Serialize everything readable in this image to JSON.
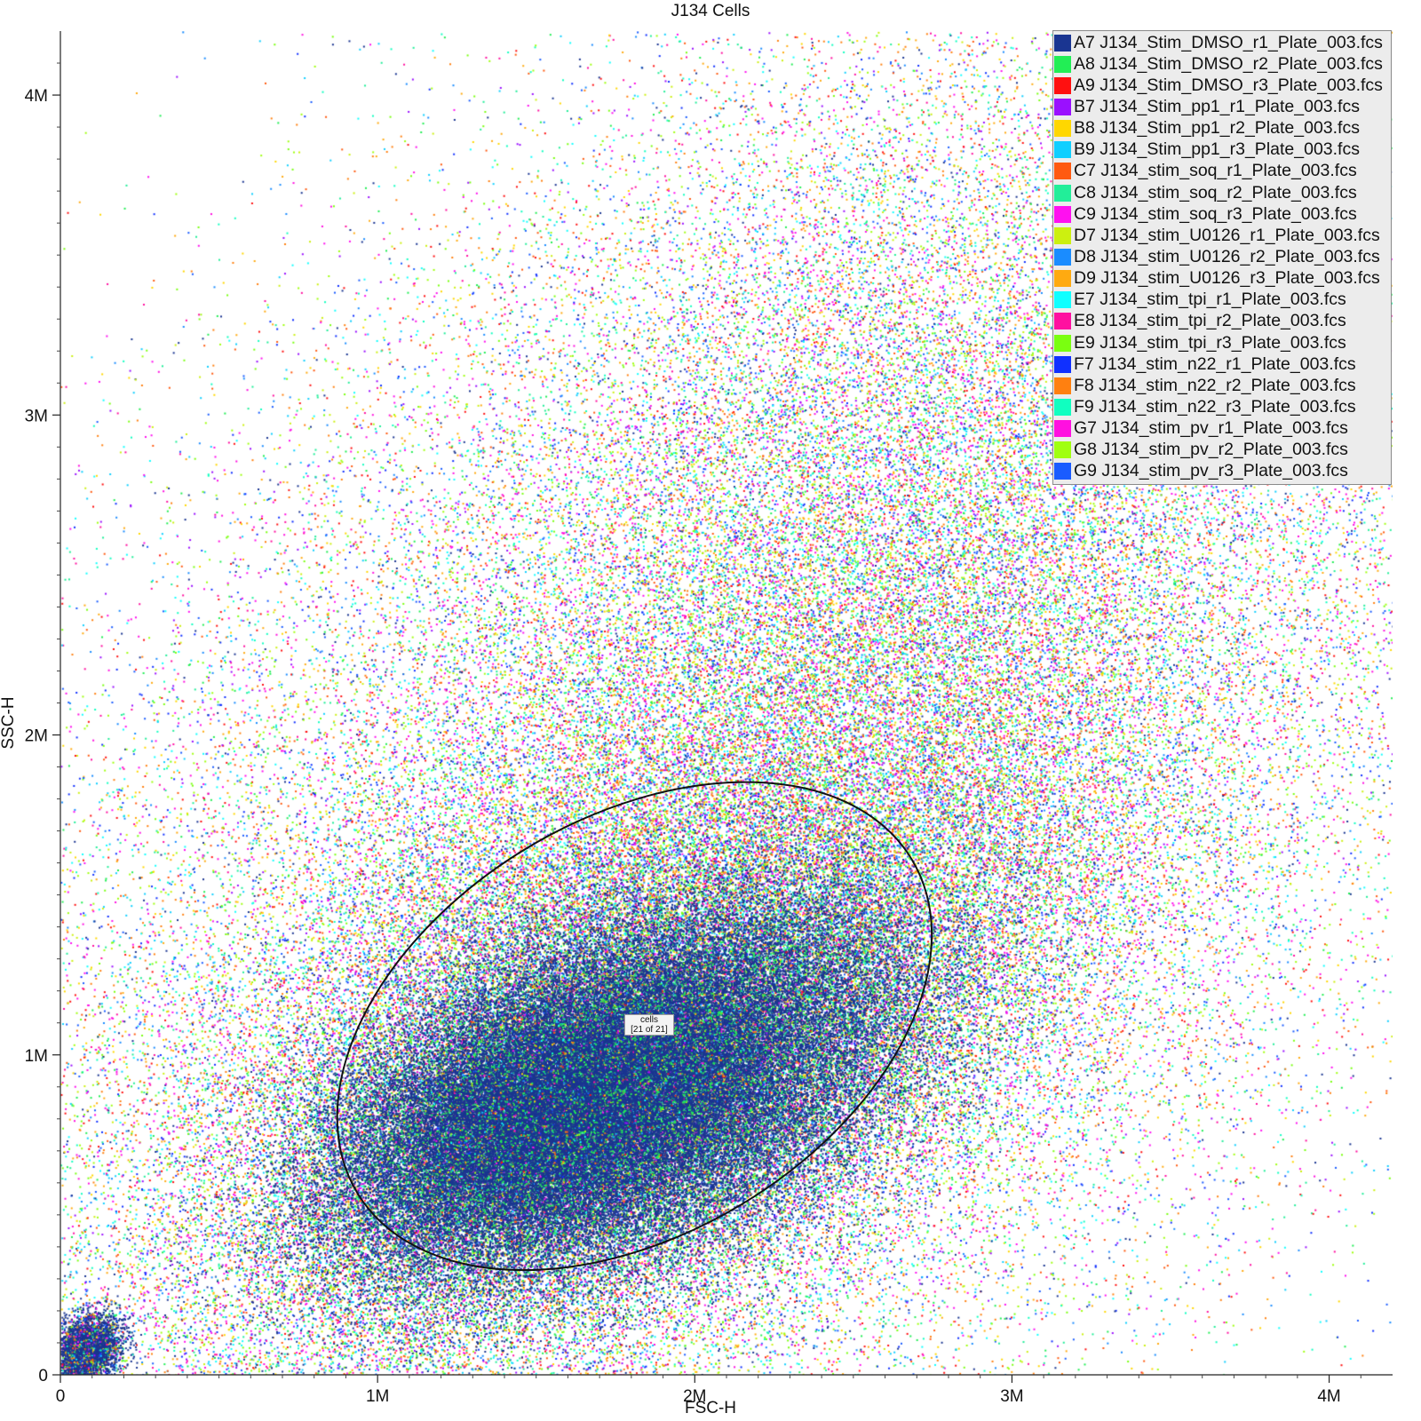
{
  "chart_data": {
    "type": "scatter",
    "title": "J134 Cells",
    "xlabel": "FSC-H",
    "ylabel": "SSC-H",
    "xlim": [
      0,
      4200000
    ],
    "ylim": [
      0,
      4200000
    ],
    "x_ticks": [
      {
        "value": 0,
        "label": "0"
      },
      {
        "value": 1000000,
        "label": "1M"
      },
      {
        "value": 2000000,
        "label": "2M"
      },
      {
        "value": 3000000,
        "label": "3M"
      },
      {
        "value": 4000000,
        "label": "4M"
      }
    ],
    "y_ticks": [
      {
        "value": 0,
        "label": "0"
      },
      {
        "value": 1000000,
        "label": "1M"
      },
      {
        "value": 2000000,
        "label": "2M"
      },
      {
        "value": 3000000,
        "label": "3M"
      },
      {
        "value": 4000000,
        "label": "4M"
      }
    ],
    "grid": false,
    "legend_position": "top-right",
    "series": [
      {
        "name": "A7 J134_Stim_DMSO_r1_Plate_003.fcs",
        "color": "#1a3591"
      },
      {
        "name": "A8 J134_Stim_DMSO_r2_Plate_003.fcs",
        "color": "#22ee55"
      },
      {
        "name": "A9 J134_Stim_DMSO_r3_Plate_003.fcs",
        "color": "#ff1010"
      },
      {
        "name": "B7 J134_Stim_pp1_r1_Plate_003.fcs",
        "color": "#9a10ff"
      },
      {
        "name": "B8 J134_Stim_pp1_r2_Plate_003.fcs",
        "color": "#ffd700"
      },
      {
        "name": "B9 J134_Stim_pp1_r3_Plate_003.fcs",
        "color": "#10cfff"
      },
      {
        "name": "C7 J134_stim_soq_r1_Plate_003.fcs",
        "color": "#ff5a10"
      },
      {
        "name": "C8 J134_stim_soq_r2_Plate_003.fcs",
        "color": "#22ee99"
      },
      {
        "name": "C9 J134_stim_soq_r3_Plate_003.fcs",
        "color": "#ff10f0"
      },
      {
        "name": "D7 J134_stim_U0126_r1_Plate_003.fcs",
        "color": "#ccf010"
      },
      {
        "name": "D8 J134_stim_U0126_r2_Plate_003.fcs",
        "color": "#1a8cff"
      },
      {
        "name": "D9 J134_stim_U0126_r3_Plate_003.fcs",
        "color": "#ffaa10"
      },
      {
        "name": "E7 J134_stim_tpi_r1_Plate_003.fcs",
        "color": "#10ffff"
      },
      {
        "name": "E8 J134_stim_tpi_r2_Plate_003.fcs",
        "color": "#ff10a0"
      },
      {
        "name": "E9 J134_stim_tpi_r3_Plate_003.fcs",
        "color": "#7aff10"
      },
      {
        "name": "F7 J134_stim_n22_r1_Plate_003.fcs",
        "color": "#1030ff"
      },
      {
        "name": "F8 J134_stim_n22_r2_Plate_003.fcs",
        "color": "#ff8010"
      },
      {
        "name": "F9 J134_stim_n22_r3_Plate_003.fcs",
        "color": "#10ffc0"
      },
      {
        "name": "G7 J134_stim_pv_r1_Plate_003.fcs",
        "color": "#ff10e0"
      },
      {
        "name": "G8 J134_stim_pv_r2_Plate_003.fcs",
        "color": "#a0ff10"
      },
      {
        "name": "G9 J134_stim_pv_r3_Plate_003.fcs",
        "color": "#1a5cff"
      }
    ],
    "density": {
      "core_center": [
        1800000,
        900000
      ],
      "core_color": "#1a3591"
    },
    "gate": {
      "type": "ellipse",
      "name": "cells",
      "label": "cells\n[21 of 21]",
      "center": [
        1810000,
        1090000
      ],
      "rx": 1020000,
      "ry": 650000,
      "angle_deg": 31,
      "color": "#111111"
    }
  }
}
